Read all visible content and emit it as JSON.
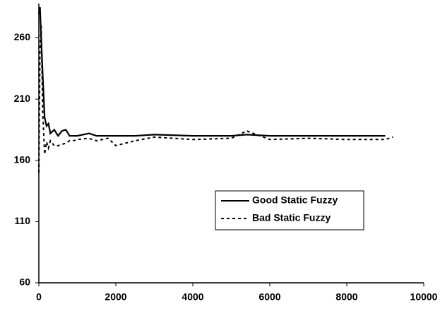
{
  "chart_data": {
    "type": "line",
    "x": [
      0,
      30,
      60,
      100,
      150,
      200,
      250,
      300,
      400,
      500,
      600,
      700,
      800,
      900,
      1000,
      1300,
      1500,
      1800,
      2000,
      2500,
      3000,
      4000,
      5000,
      5400,
      6000,
      7000,
      8000,
      9000,
      9200
    ],
    "series": [
      {
        "name": "Good Static Fuzzy",
        "color": "#000000",
        "style": "solid",
        "values": [
          280,
          285,
          260,
          230,
          195,
          188,
          190,
          182,
          185,
          180,
          184,
          185,
          180,
          180,
          180,
          182,
          180,
          180,
          180,
          180,
          181,
          180,
          180,
          181,
          180,
          180,
          180,
          180,
          null
        ]
      },
      {
        "name": "Bad Static Fuzzy",
        "color": "#000000",
        "style": "dashed",
        "values": [
          150,
          250,
          270,
          200,
          165,
          175,
          170,
          176,
          172,
          172,
          173,
          174,
          176,
          176,
          177,
          178,
          176,
          178,
          172,
          176,
          179,
          177,
          178,
          184,
          177,
          178,
          177,
          177,
          179
        ]
      }
    ],
    "xlim": [
      0,
      10000
    ],
    "xticks": [
      0,
      2000,
      4000,
      6000,
      8000,
      10000
    ],
    "ylim": [
      60,
      288
    ],
    "yticks": [
      60,
      110,
      160,
      210,
      260
    ],
    "legend": "right"
  }
}
